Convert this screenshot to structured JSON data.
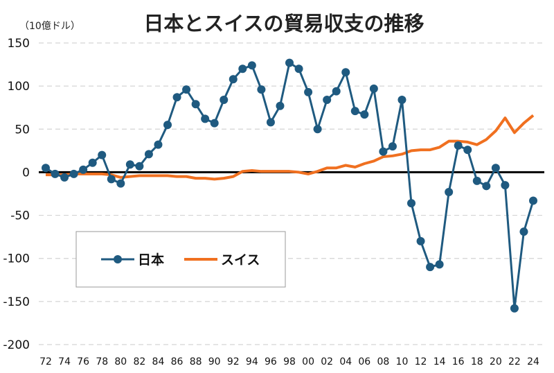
{
  "chart_data": {
    "type": "line",
    "title": "日本とスイスの貿易収支の推移",
    "unit_label": "（10億ドル）",
    "ylim": [
      -200,
      150
    ],
    "yticks": [
      150,
      100,
      50,
      0,
      -50,
      -100,
      -150,
      -200
    ],
    "ytick_labels": [
      "150",
      "100",
      "50",
      "0",
      "-50",
      "-100",
      "-150",
      "-200"
    ],
    "grid": true,
    "grid_style": "dashed",
    "legend_position": "lower-left",
    "x": [
      1972,
      1973,
      1974,
      1975,
      1976,
      1977,
      1978,
      1979,
      1980,
      1981,
      1982,
      1983,
      1984,
      1985,
      1986,
      1987,
      1988,
      1989,
      1990,
      1991,
      1992,
      1993,
      1994,
      1995,
      1996,
      1997,
      1998,
      1999,
      2000,
      2001,
      2002,
      2003,
      2004,
      2005,
      2006,
      2007,
      2008,
      2009,
      2010,
      2011,
      2012,
      2013,
      2014,
      2015,
      2016,
      2017,
      2018,
      2019,
      2020,
      2021,
      2022,
      2023,
      2024
    ],
    "xtick_values": [
      1972,
      1974,
      1976,
      1978,
      1980,
      1982,
      1984,
      1986,
      1988,
      1990,
      1992,
      1994,
      1996,
      1998,
      2000,
      2002,
      2004,
      2006,
      2008,
      2010,
      2012,
      2014,
      2016,
      2018,
      2020,
      2022,
      2024
    ],
    "xtick_labels": [
      "72",
      "74",
      "76",
      "78",
      "80",
      "82",
      "84",
      "86",
      "88",
      "90",
      "92",
      "94",
      "96",
      "98",
      "00",
      "02",
      "04",
      "06",
      "08",
      "10",
      "12",
      "14",
      "16",
      "18",
      "20",
      "22",
      "24"
    ],
    "series": [
      {
        "name": "日本",
        "color": "#1f5a80",
        "marker": "circle",
        "values": [
          5,
          -2,
          -6,
          -2,
          3,
          11,
          20,
          -8,
          -13,
          9,
          7,
          21,
          32,
          55,
          87,
          96,
          79,
          62,
          57,
          84,
          108,
          120,
          124,
          96,
          58,
          77,
          127,
          120,
          93,
          50,
          84,
          94,
          116,
          71,
          67,
          97,
          24,
          30,
          84,
          -36,
          -80,
          -110,
          -107,
          -23,
          31,
          26,
          -10,
          -16,
          5,
          -15,
          -158,
          -69,
          -33
        ]
      },
      {
        "name": "スイス",
        "color": "#f07020",
        "marker": "none",
        "values": [
          -3,
          -3,
          -3,
          -2,
          -2,
          -2,
          -2,
          -3,
          -6,
          -5,
          -4,
          -4,
          -4,
          -4,
          -5,
          -5,
          -7,
          -7,
          -8,
          -7,
          -5,
          1,
          2,
          1,
          1,
          1,
          1,
          0,
          -2,
          1,
          5,
          5,
          8,
          6,
          10,
          13,
          18,
          19,
          21,
          25,
          26,
          26,
          29,
          36,
          36,
          35,
          32,
          38,
          48,
          63,
          46,
          57,
          66
        ]
      }
    ]
  }
}
